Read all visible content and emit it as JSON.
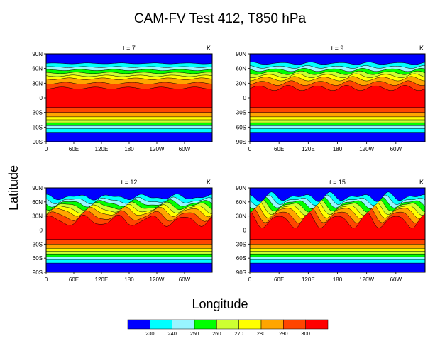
{
  "chart_data": {
    "type": "heatmap",
    "title": "CAM-FV Test 412, T850 hPa",
    "xlabel": "Longitude",
    "ylabel": "Latitude",
    "units": "K",
    "x_ticks": [
      "0",
      "60E",
      "120E",
      "180",
      "120W",
      "60W"
    ],
    "y_ticks": [
      "90N",
      "60N",
      "30N",
      "0",
      "30S",
      "60S",
      "90S"
    ],
    "xlim": [
      0,
      360
    ],
    "ylim": [
      -90,
      90
    ],
    "colorbar": {
      "levels": [
        230,
        240,
        250,
        260,
        270,
        280,
        290,
        300
      ],
      "colors": [
        "#0000ff",
        "#00ffff",
        "#98f5ff",
        "#00ff00",
        "#cdff32",
        "#ffff00",
        "#ffa500",
        "#ff4500",
        "#ff0000"
      ]
    },
    "panels": [
      {
        "label": "t = 7",
        "units": "K",
        "wave_amplitude": 0.15
      },
      {
        "label": "t = 9",
        "units": "K",
        "wave_amplitude": 0.35
      },
      {
        "label": "t = 12",
        "units": "K",
        "wave_amplitude": 0.7
      },
      {
        "label": "t = 15",
        "units": "K",
        "wave_amplitude": 1.0
      }
    ]
  }
}
